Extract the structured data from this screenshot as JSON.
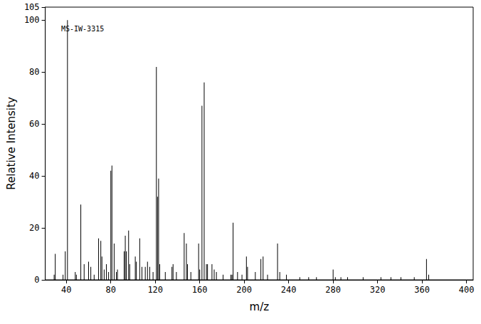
{
  "chart_data": {
    "type": "bar",
    "annotation": "MS-IW-3315",
    "x_label": "m/z",
    "y_label": "Relative Intensity",
    "x": [
      29,
      30,
      37,
      39,
      41,
      48,
      49,
      53,
      56,
      60,
      62,
      65,
      69,
      71,
      72,
      74,
      76,
      78,
      80,
      81,
      83,
      85,
      86,
      92,
      93,
      94,
      96,
      97,
      102,
      103,
      106,
      108,
      111,
      113,
      115,
      118,
      121,
      122,
      123,
      124,
      129,
      135,
      136,
      139,
      146,
      148,
      149,
      152,
      159,
      160,
      162,
      164,
      166,
      167,
      171,
      173,
      175,
      181,
      188,
      189,
      190,
      194,
      198,
      202,
      203,
      210,
      215,
      217,
      221,
      230,
      232,
      238,
      250,
      258,
      265,
      280,
      282,
      287,
      293,
      307,
      323,
      332,
      341,
      353,
      364,
      366
    ],
    "values": [
      2,
      10,
      2,
      11,
      100,
      3,
      2,
      29,
      6,
      7,
      5,
      2,
      16,
      15,
      9,
      4,
      6,
      3,
      42,
      44,
      14,
      3,
      4,
      11,
      17,
      11,
      19,
      6,
      9,
      7,
      16,
      5,
      5,
      7,
      5,
      3,
      82,
      32,
      39,
      6,
      3,
      5,
      6,
      3,
      18,
      14,
      6,
      3,
      14,
      4,
      67,
      76,
      6,
      6,
      6,
      4,
      3,
      2,
      2,
      2,
      22,
      3,
      2,
      9,
      5,
      3,
      8,
      9,
      2,
      14,
      3,
      2,
      1,
      1,
      1,
      4,
      1,
      1,
      1,
      1,
      1,
      1,
      1,
      1,
      8,
      2
    ],
    "color": "#000000",
    "xlim": [
      21,
      406
    ],
    "ylim": [
      0,
      105
    ],
    "xticks": [
      40,
      80,
      120,
      160,
      200,
      240,
      280,
      320,
      360,
      400
    ],
    "yticks": [
      0,
      20,
      40,
      60,
      80,
      100
    ],
    "grid": false
  }
}
